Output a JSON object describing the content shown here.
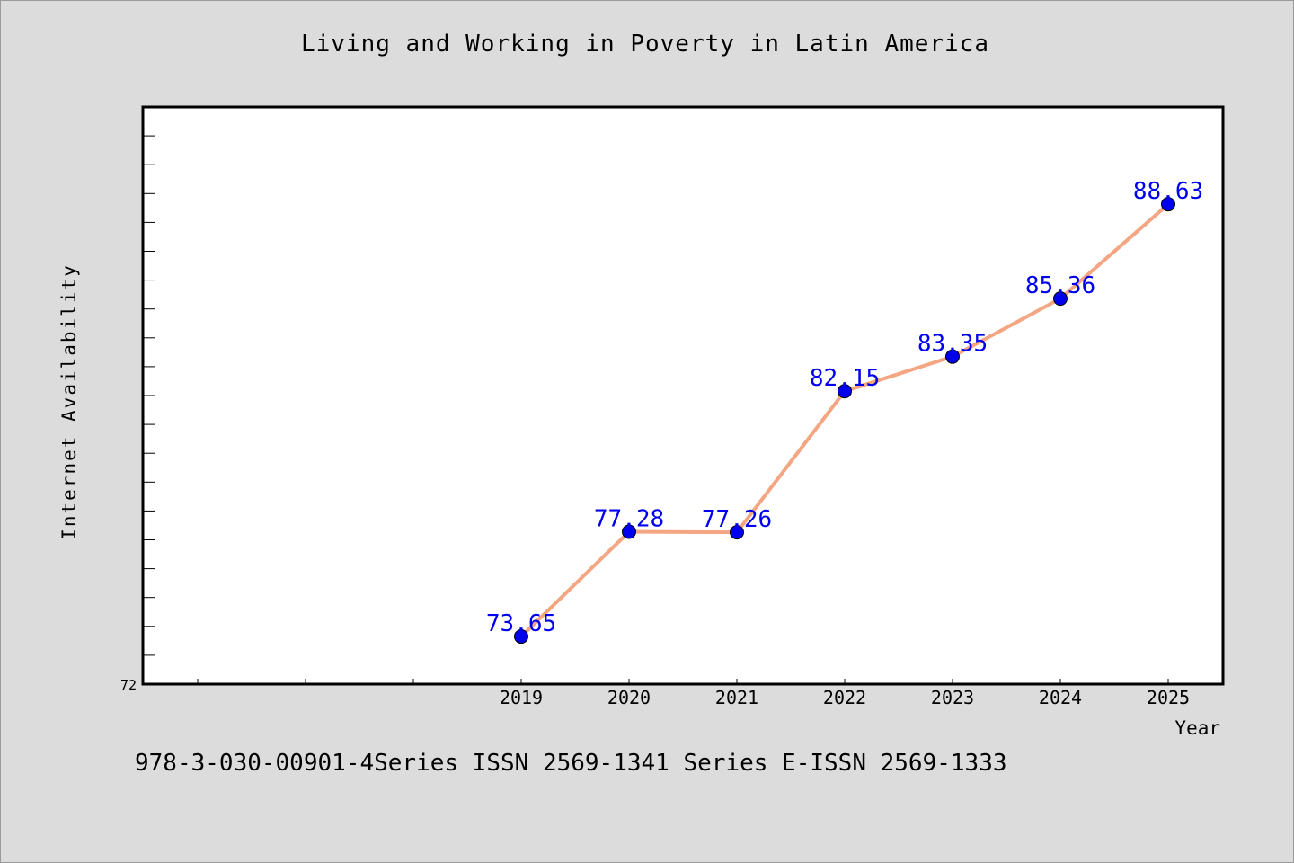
{
  "figure": {
    "title": "Living and Working in Poverty in Latin America",
    "footer": "978-3-030-00901-4Series ISSN 2569-1341 Series E-ISSN 2569-1333"
  },
  "chart_data": {
    "type": "line",
    "title": "Living and Working in Poverty in Latin America",
    "xlabel": "Year",
    "ylabel": "Internet Availability",
    "x": [
      "2019",
      "2020",
      "2021",
      "2022",
      "2023",
      "2024",
      "2025"
    ],
    "series": [
      {
        "values": [
          73.65,
          77.28,
          77.26,
          82.15,
          83.35,
          85.36,
          88.63
        ],
        "labels": [
          "73.65",
          "77.28",
          "77.26",
          "82.15",
          "83.35",
          "85.36",
          "88.63"
        ]
      }
    ],
    "ylim": [
      72,
      92
    ],
    "y_tick_labels": [
      "72"
    ],
    "grid": false,
    "legend": "none",
    "colors": {
      "line": "#f4a582",
      "marker": "#0000ee",
      "label": "#0000ee"
    }
  }
}
